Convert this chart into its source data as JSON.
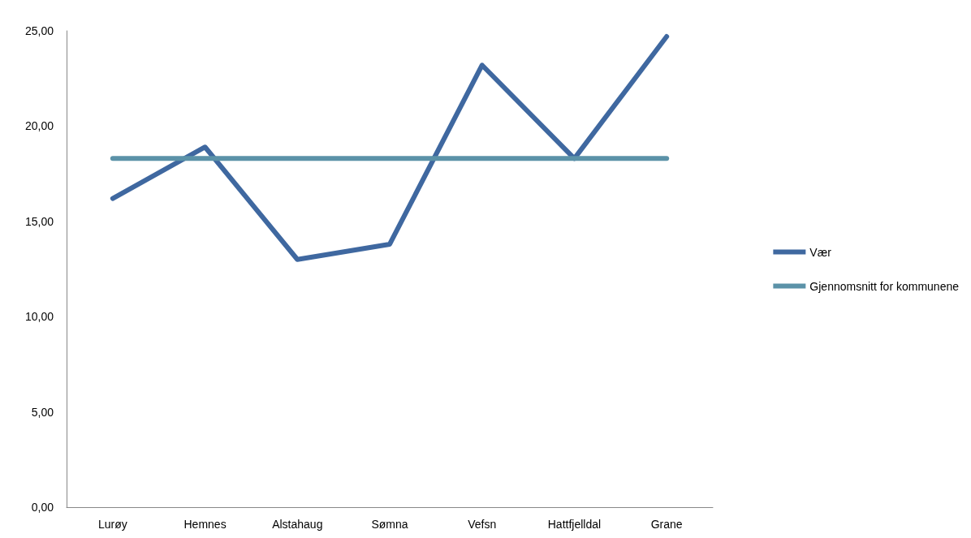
{
  "chart_data": {
    "type": "line",
    "categories": [
      "Lurøy",
      "Hemnes",
      "Alstahaug",
      "Sømna",
      "Vefsn",
      "Hattfjelldal",
      "Grane"
    ],
    "series": [
      {
        "name": "Vær",
        "color": "#3f68a0",
        "values": [
          16.2,
          18.9,
          13.0,
          13.8,
          23.2,
          18.3,
          24.7
        ]
      },
      {
        "name": "Gjennomsnitt for kommunene",
        "color": "#5b92a8",
        "values": [
          18.3,
          18.3,
          18.3,
          18.3,
          18.3,
          18.3,
          18.3
        ]
      }
    ],
    "ylim": [
      0,
      25
    ],
    "yticks": [
      {
        "value": 0,
        "label": "0,00"
      },
      {
        "value": 5,
        "label": "5,00"
      },
      {
        "value": 10,
        "label": "10,00"
      },
      {
        "value": 15,
        "label": "15,00"
      },
      {
        "value": 20,
        "label": "20,00"
      },
      {
        "value": 25,
        "label": "25,00"
      }
    ],
    "grid": false,
    "legend": "right",
    "marker": "none",
    "line_style": "solid"
  }
}
